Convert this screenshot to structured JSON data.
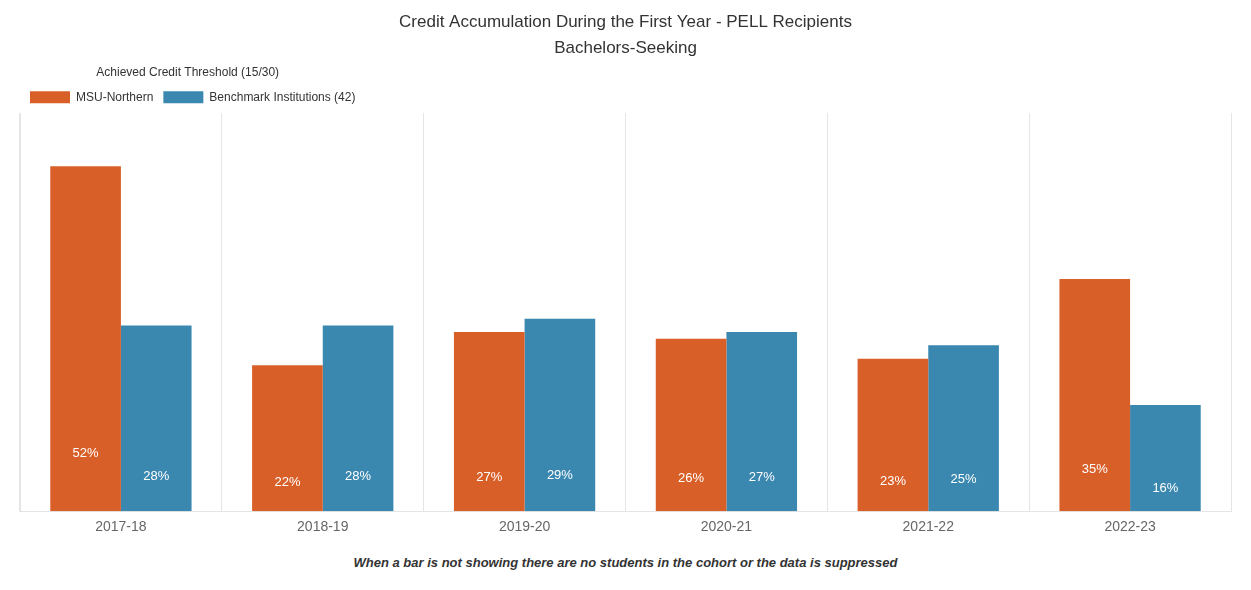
{
  "chart_data": {
    "type": "bar",
    "title": "Credit Accumulation During the First Year - PELL Recipients",
    "subtitle": "Bachelors-Seeking",
    "categories": [
      "2017-18",
      "2018-19",
      "2019-20",
      "2020-21",
      "2021-22",
      "2022-23"
    ],
    "series": [
      {
        "name": "MSU-Northern",
        "color": "#d95f28",
        "values": [
          52,
          22,
          27,
          26,
          23,
          35
        ],
        "value_labels": [
          "52%",
          "22%",
          "27%",
          "26%",
          "23%",
          "35%"
        ]
      },
      {
        "name": "Benchmark Institutions (42)",
        "color": "#3a87b0",
        "values": [
          28,
          28,
          29,
          27,
          25,
          16
        ],
        "value_labels": [
          "28%",
          "28%",
          "29%",
          "27%",
          "25%",
          "16%"
        ]
      }
    ],
    "legend_title": "Achieved Credit Threshold (15/30)",
    "legend": "upper left",
    "footnote": "When a bar is not showing there are no students in the cohort or the data is suppressed",
    "ylim": [
      0,
      60
    ],
    "grid": "x",
    "data_labels": true,
    "tick_labels": "x"
  }
}
